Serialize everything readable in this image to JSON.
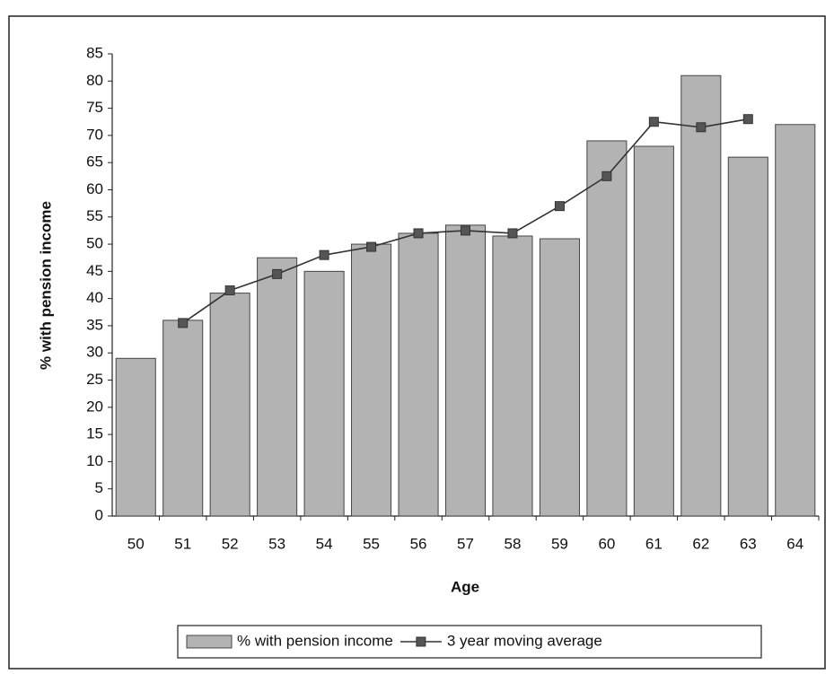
{
  "chart_data": {
    "type": "bar",
    "x_label": "Age",
    "y_label": "% with pension income",
    "categories": [
      "50",
      "51",
      "52",
      "53",
      "54",
      "55",
      "56",
      "57",
      "58",
      "59",
      "60",
      "61",
      "62",
      "63",
      "64"
    ],
    "series": [
      {
        "name": "% with pension income",
        "type": "bar",
        "color": "#b3b3b3",
        "values": [
          29,
          36,
          41,
          47.5,
          45,
          50,
          52,
          53.5,
          51.5,
          51,
          69,
          68,
          81,
          66,
          72
        ]
      },
      {
        "name": "3 year moving average",
        "type": "line",
        "color": "#333333",
        "values": [
          null,
          35.5,
          41.5,
          44.5,
          48,
          49.5,
          52,
          52.5,
          52,
          57,
          62.5,
          72.5,
          71.5,
          73,
          null
        ]
      }
    ],
    "ylim": [
      0,
      85
    ],
    "yticks": [
      0,
      5,
      10,
      15,
      20,
      25,
      30,
      35,
      40,
      45,
      50,
      55,
      60,
      65,
      70,
      75,
      80,
      85
    ],
    "grid": false,
    "legend": "bottom"
  }
}
